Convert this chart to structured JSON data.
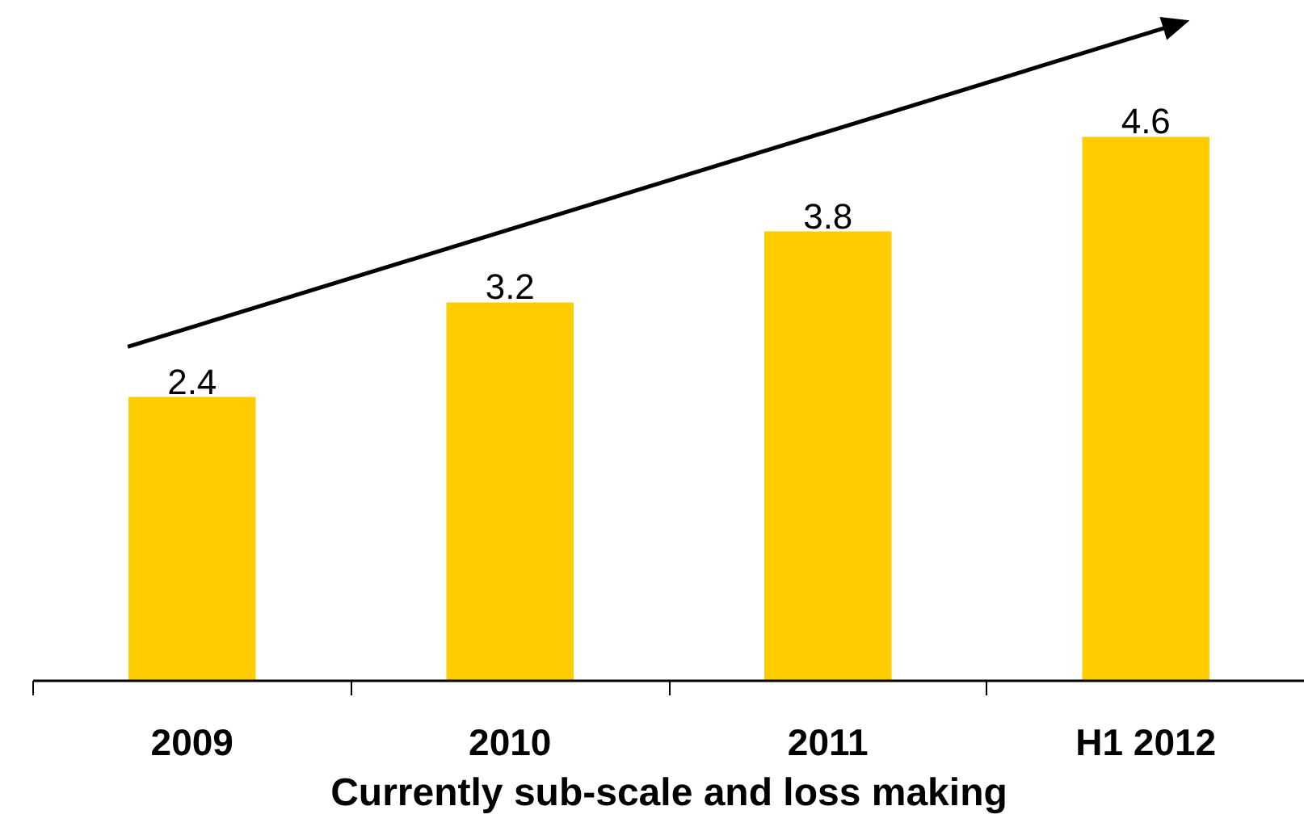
{
  "chart_data": {
    "type": "bar",
    "categories": [
      "2009",
      "2010",
      "2011",
      "H1 2012"
    ],
    "values": [
      2.4,
      3.2,
      3.8,
      4.6
    ],
    "color": "#ffcc00",
    "data_labels": true,
    "xlabel": "Currently sub-scale and loss making",
    "grid": false,
    "tick_labels": "x"
  }
}
